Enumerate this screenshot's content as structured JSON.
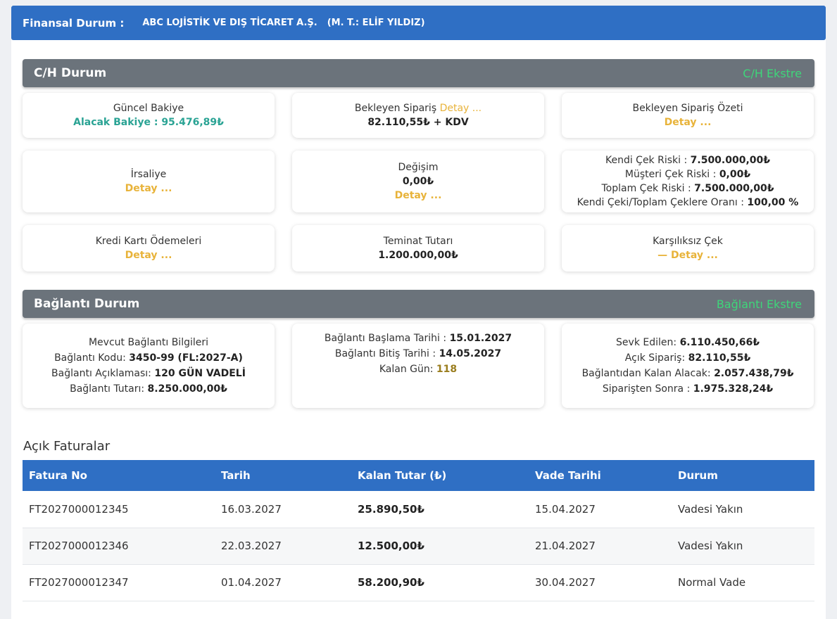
{
  "header": {
    "title": "Finansal Durum :",
    "company": "ABC LOJİSTİK VE DIŞ TİCARET A.Ş.",
    "rep": "(M. T.: ELİF YILDIZ)"
  },
  "ch": {
    "title": "C/H Durum",
    "link": "C/H Ekstre",
    "guncel_label": "Güncel Bakiye",
    "guncel_value": "Alacak Bakiye : 95.476,89₺",
    "bekleyen_label": "Bekleyen Sipariş",
    "bekleyen_detay": "Detay ...",
    "bekleyen_value": "82.110,55₺ + KDV",
    "ozet_label": "Bekleyen Sipariş Özeti",
    "ozet_detay": "Detay ...",
    "irsaliye_label": "İrsaliye",
    "irsaliye_detay": "Detay ...",
    "degisim_label": "Değişim",
    "degisim_value": "0,00₺",
    "degisim_detay": "Detay ...",
    "risk": {
      "kendi_label": "Kendi Çek Riski :",
      "kendi_value": "7.500.000,00₺",
      "musteri_label": "Müşteri Çek Riski :",
      "musteri_value": "0,00₺",
      "toplam_label": "Toplam Çek Riski :",
      "toplam_value": "7.500.000,00₺",
      "oran_label": "Kendi Çeki/Toplam Çeklere Oranı :",
      "oran_value": "100,00 %"
    },
    "kredi_label": "Kredi Kartı Ödemeleri",
    "kredi_detay": "Detay ...",
    "teminat_label": "Teminat Tutarı",
    "teminat_value": "1.200.000,00₺",
    "karsiliksiz_label": "Karşılıksız Çek",
    "karsiliksiz_detay": "— Detay ..."
  },
  "baglanti": {
    "title": "Bağlantı Durum",
    "link": "Bağlantı Ekstre",
    "bilgi_title": "Mevcut Bağlantı Bilgileri",
    "kod_label": "Bağlantı Kodu:",
    "kod_value": "3450-99 (FL:2027-A)",
    "aciklama_label": "Bağlantı Açıklaması:",
    "aciklama_value": "120 GÜN VADELİ",
    "tutar_label": "Bağlantı Tutarı:",
    "tutar_value": "8.250.000,00₺",
    "baslama_label": "Bağlantı Başlama Tarihi :",
    "baslama_value": "15.01.2027",
    "bitis_label": "Bağlantı Bitiş Tarihi :",
    "bitis_value": "14.05.2027",
    "kalan_label": "Kalan Gün:",
    "kalan_value": "118",
    "sevk_label": "Sevk Edilen:",
    "sevk_value": "6.110.450,66₺",
    "acik_label": "Açık Sipariş:",
    "acik_value": "82.110,55₺",
    "kalan_alacak_label": "Bağlantıdan Kalan Alacak:",
    "kalan_alacak_value": "2.057.438,79₺",
    "sonra_label": "Siparişten Sonra :",
    "sonra_value": "1.975.328,24₺"
  },
  "invoices": {
    "title": "Açık Faturalar",
    "columns": [
      "Fatura No",
      "Tarih",
      "Kalan Tutar (₺)",
      "Vade Tarihi",
      "Durum"
    ],
    "rows": [
      [
        "FT2027000012345",
        "16.03.2027",
        "25.890,50₺",
        "15.04.2027",
        "Vadesi Yakın"
      ],
      [
        "FT2027000012346",
        "22.03.2027",
        "12.500,00₺",
        "21.04.2027",
        "Vadesi Yakın"
      ],
      [
        "FT2027000012347",
        "01.04.2027",
        "58.200,90₺",
        "30.04.2027",
        "Normal Vade"
      ]
    ]
  }
}
